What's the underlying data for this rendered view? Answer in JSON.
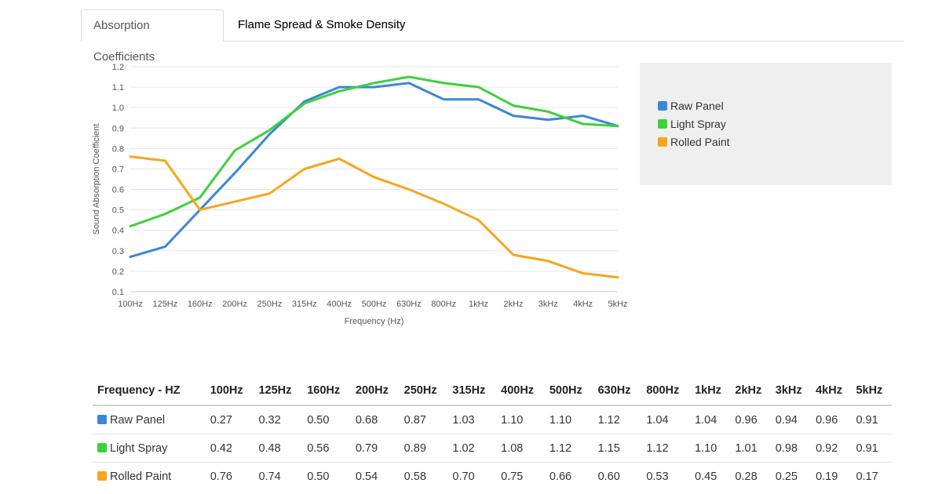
{
  "tabs": [
    {
      "label": "Absorption Coefficients",
      "active": true
    },
    {
      "label": "Flame Spread & Smoke Density",
      "active": false
    }
  ],
  "chart_data": {
    "type": "line",
    "title": "",
    "xlabel": "Frequency (Hz)",
    "ylabel": "Sound Absorption Coefficient",
    "categories": [
      "100Hz",
      "125Hz",
      "160Hz",
      "200Hz",
      "250Hz",
      "315Hz",
      "400Hz",
      "500Hz",
      "630Hz",
      "800Hz",
      "1kHz",
      "2kHz",
      "3kHz",
      "4kHz",
      "5kHz"
    ],
    "ylim": [
      0.1,
      1.2
    ],
    "yticks": [
      "0.1",
      "0.2",
      "0.3",
      "0.4",
      "0.5",
      "0.6",
      "0.7",
      "0.8",
      "0.9",
      "1.0",
      "1.1",
      "1.2"
    ],
    "grid": true,
    "legend_position": "right",
    "series": [
      {
        "name": "Raw Panel",
        "color": "#3a87d8",
        "values": [
          0.27,
          0.32,
          0.5,
          0.68,
          0.87,
          1.03,
          1.1,
          1.1,
          1.12,
          1.04,
          1.04,
          0.96,
          0.94,
          0.96,
          0.91
        ]
      },
      {
        "name": "Light Spray",
        "color": "#3dd13b",
        "values": [
          0.42,
          0.48,
          0.56,
          0.79,
          0.89,
          1.02,
          1.08,
          1.12,
          1.15,
          1.12,
          1.1,
          1.01,
          0.98,
          0.92,
          0.91
        ]
      },
      {
        "name": "Rolled Paint",
        "color": "#f7a51c",
        "values": [
          0.76,
          0.74,
          0.5,
          0.54,
          0.58,
          0.7,
          0.75,
          0.66,
          0.6,
          0.53,
          0.45,
          0.28,
          0.25,
          0.19,
          0.17
        ]
      }
    ]
  },
  "table": {
    "header_label": "Frequency - HZ",
    "columns": [
      "100Hz",
      "125Hz",
      "160Hz",
      "200Hz",
      "250Hz",
      "315Hz",
      "400Hz",
      "500Hz",
      "630Hz",
      "800Hz",
      "1kHz",
      "2kHz",
      "3kHz",
      "4kHz",
      "5kHz"
    ],
    "rows": [
      {
        "label": "Raw Panel",
        "color": "#3a87d8",
        "values": [
          "0.27",
          "0.32",
          "0.50",
          "0.68",
          "0.87",
          "1.03",
          "1.10",
          "1.10",
          "1.12",
          "1.04",
          "1.04",
          "0.96",
          "0.94",
          "0.96",
          "0.91"
        ]
      },
      {
        "label": "Light Spray",
        "color": "#3dd13b",
        "values": [
          "0.42",
          "0.48",
          "0.56",
          "0.79",
          "0.89",
          "1.02",
          "1.08",
          "1.12",
          "1.15",
          "1.12",
          "1.10",
          "1.01",
          "0.98",
          "0.92",
          "0.91"
        ]
      },
      {
        "label": "Rolled Paint",
        "color": "#f7a51c",
        "values": [
          "0.76",
          "0.74",
          "0.50",
          "0.54",
          "0.58",
          "0.70",
          "0.75",
          "0.66",
          "0.60",
          "0.53",
          "0.45",
          "0.28",
          "0.25",
          "0.19",
          "0.17"
        ]
      }
    ]
  }
}
